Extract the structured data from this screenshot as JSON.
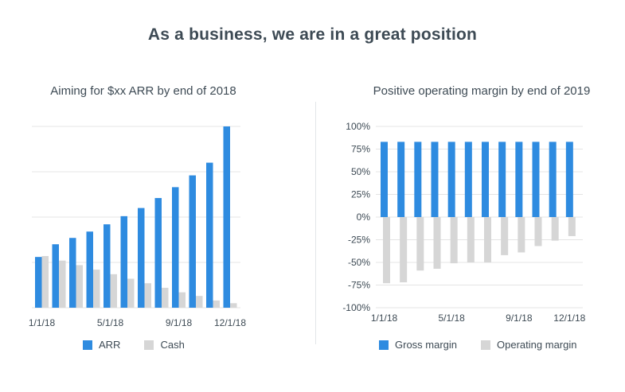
{
  "page": {
    "title": "As a business, we are in a great position"
  },
  "colors": {
    "primary": "#2e8be0",
    "secondary": "#d6d6d6",
    "grid": "#e4e4e4"
  },
  "legend_left": [
    {
      "label": "ARR",
      "color": "#2e8be0"
    },
    {
      "label": "Cash",
      "color": "#d6d6d6"
    }
  ],
  "legend_right": [
    {
      "label": "Gross margin",
      "color": "#2e8be0"
    },
    {
      "label": "Operating margin",
      "color": "#d6d6d6"
    }
  ],
  "chart_data": [
    {
      "type": "bar",
      "title": "Aiming for $xx ARR by end of 2018",
      "xlabel": "",
      "ylabel": "",
      "categories": [
        "1/1/18",
        "2/1/18",
        "3/1/18",
        "4/1/18",
        "5/1/18",
        "6/1/18",
        "7/1/18",
        "8/1/18",
        "9/1/18",
        "10/1/18",
        "11/1/18",
        "12/1/18"
      ],
      "x_tick_labels": [
        "1/1/18",
        "5/1/18",
        "9/1/18",
        "12/1/18"
      ],
      "y_tick_labels": [],
      "ylim": [
        0,
        100
      ],
      "series": [
        {
          "name": "ARR",
          "values": [
            28,
            35,
            38.5,
            42,
            46,
            50.5,
            55,
            60.5,
            66.5,
            73,
            80,
            100
          ]
        },
        {
          "name": "Cash",
          "values": [
            28.5,
            26,
            23.5,
            21,
            18.5,
            16,
            13.5,
            11,
            8.5,
            6.5,
            4,
            2.5
          ]
        }
      ],
      "grid": true,
      "legend_position": "bottom"
    },
    {
      "type": "bar",
      "title": "Positive operating margin by end of 2019",
      "xlabel": "",
      "ylabel": "",
      "categories": [
        "1/1/18",
        "2/1/18",
        "3/1/18",
        "4/1/18",
        "5/1/18",
        "6/1/18",
        "7/1/18",
        "8/1/18",
        "9/1/18",
        "10/1/18",
        "11/1/18",
        "12/1/18"
      ],
      "x_tick_labels": [
        "1/1/18",
        "5/1/18",
        "9/1/18",
        "12/1/18"
      ],
      "y_tick_labels": [
        "100%",
        "75%",
        "50%",
        "25%",
        "0%",
        "-25%",
        "-50%",
        "-75%",
        "-100%"
      ],
      "y_tick_values": [
        100,
        75,
        50,
        25,
        0,
        -25,
        -50,
        -75,
        -100
      ],
      "ylim": [
        -100,
        100
      ],
      "series": [
        {
          "name": "Gross margin",
          "values": [
            83,
            83,
            83,
            83,
            83,
            83,
            83,
            83,
            83,
            83,
            83,
            83
          ]
        },
        {
          "name": "Operating margin",
          "values": [
            -73,
            -72,
            -59,
            -57,
            -51,
            -50,
            -50,
            -42,
            -39,
            -32,
            -26,
            -21
          ]
        }
      ],
      "grid": true,
      "legend_position": "bottom"
    }
  ]
}
